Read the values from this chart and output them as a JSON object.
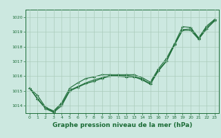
{
  "title": "Graphe pression niveau de la mer (hPa)",
  "x": [
    0,
    1,
    2,
    3,
    4,
    5,
    6,
    7,
    8,
    9,
    10,
    11,
    12,
    13,
    14,
    15,
    16,
    17,
    18,
    19,
    20,
    21,
    22,
    23
  ],
  "line1": [
    1015.2,
    1014.7,
    1013.9,
    1013.65,
    1014.2,
    1015.2,
    1015.55,
    1015.85,
    1015.95,
    1016.1,
    1016.1,
    1016.1,
    1016.1,
    1016.1,
    1015.9,
    1015.6,
    1016.5,
    1017.2,
    1018.2,
    1019.35,
    1019.3,
    1018.6,
    1019.4,
    1019.85
  ],
  "line2": [
    1015.2,
    1014.5,
    1013.85,
    1013.6,
    1014.1,
    1015.05,
    1015.3,
    1015.55,
    1015.75,
    1015.9,
    1016.05,
    1016.05,
    1016.05,
    1016.0,
    1015.8,
    1015.5,
    1016.4,
    1017.05,
    1018.15,
    1019.15,
    1019.2,
    1018.55,
    1019.3,
    1019.8
  ],
  "line3": [
    1015.2,
    1014.45,
    1013.8,
    1013.55,
    1014.0,
    1015.0,
    1015.25,
    1015.5,
    1015.65,
    1015.85,
    1016.0,
    1016.0,
    1015.95,
    1015.95,
    1015.75,
    1015.45,
    1016.35,
    1017.0,
    1018.1,
    1019.1,
    1019.1,
    1018.5,
    1019.2,
    1019.75
  ],
  "ylim": [
    1013.5,
    1020.5
  ],
  "yticks": [
    1014,
    1015,
    1016,
    1017,
    1018,
    1019,
    1020
  ],
  "xlim": [
    -0.5,
    23.5
  ],
  "bg_color": "#cce8e0",
  "grid_color": "#aaccbb",
  "line_color": "#1a6b35",
  "title_color": "#1a6b35",
  "title_fontsize": 6.5,
  "tick_fontsize": 4.5,
  "marker": "+",
  "marker_size": 2.5,
  "line_width": 0.8
}
